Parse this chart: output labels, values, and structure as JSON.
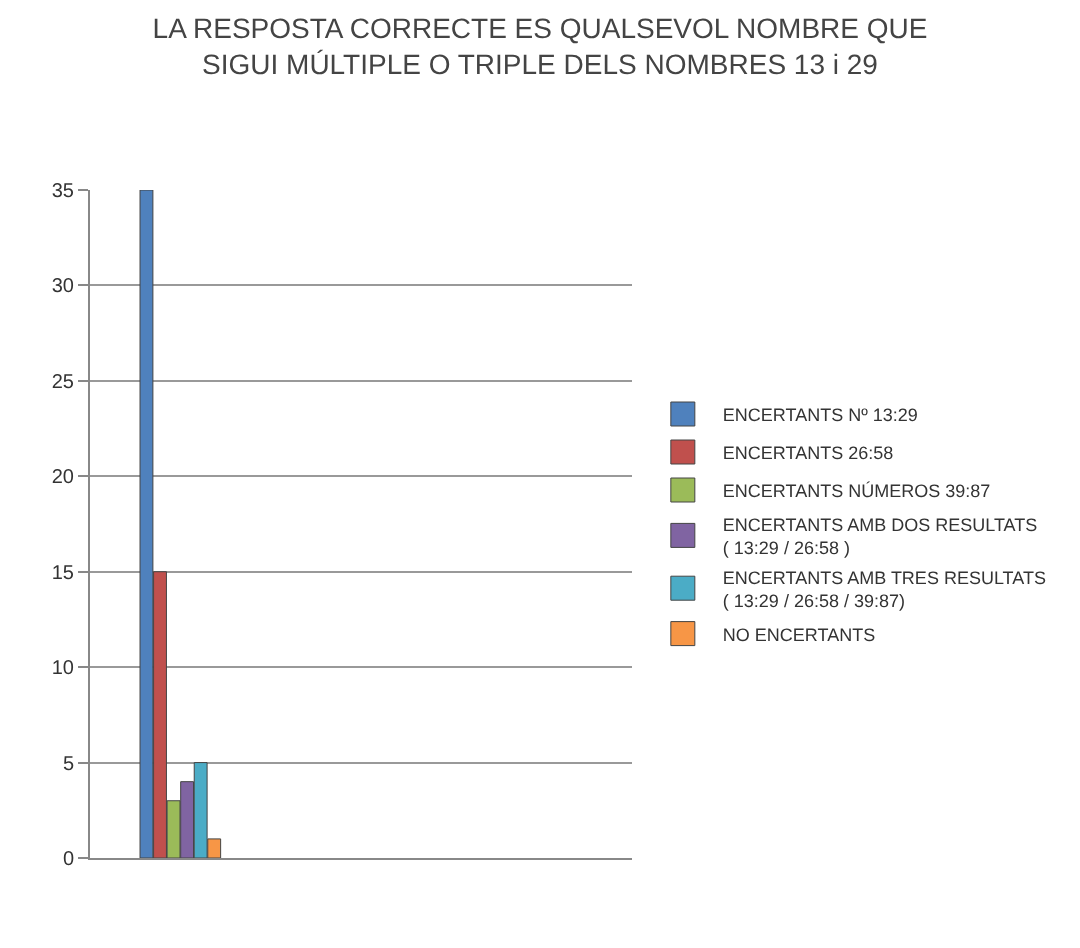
{
  "chart_data": {
    "type": "bar",
    "title": "LA RESPOSTA CORRECTE ES QUALSEVOL NOMBRE QUE\nSIGUI MÚLTIPLE O TRIPLE DELS NOMBRES 13 i 29",
    "categories": [
      null
    ],
    "series": [
      {
        "name": "ENCERTANTS Nº 13:29",
        "color": "#4f81bd",
        "values": [
          35
        ]
      },
      {
        "name": "ENCERTANTS 26:58",
        "color": "#c0504d",
        "values": [
          15
        ]
      },
      {
        "name": "ENCERTANTS NÚMEROS 39:87",
        "color": "#9bbb59",
        "values": [
          3
        ]
      },
      {
        "name": "ENCERTANTS AMB DOS RESULTATS\n( 13:29 / 26:58 )",
        "color": "#8064a2",
        "values": [
          4
        ]
      },
      {
        "name": "ENCERTANTS AMB TRES RESULTATS\n( 13:29 / 26:58 / 39:87)",
        "color": "#4bacc6",
        "values": [
          5
        ]
      },
      {
        "name": "NO ENCERTANTS",
        "color": "#f79646",
        "values": [
          1
        ]
      }
    ],
    "ylim": [
      0,
      35
    ],
    "yticks": [
      0,
      5,
      10,
      15,
      20,
      25,
      30,
      35
    ],
    "grid": "y",
    "legend": "right"
  }
}
